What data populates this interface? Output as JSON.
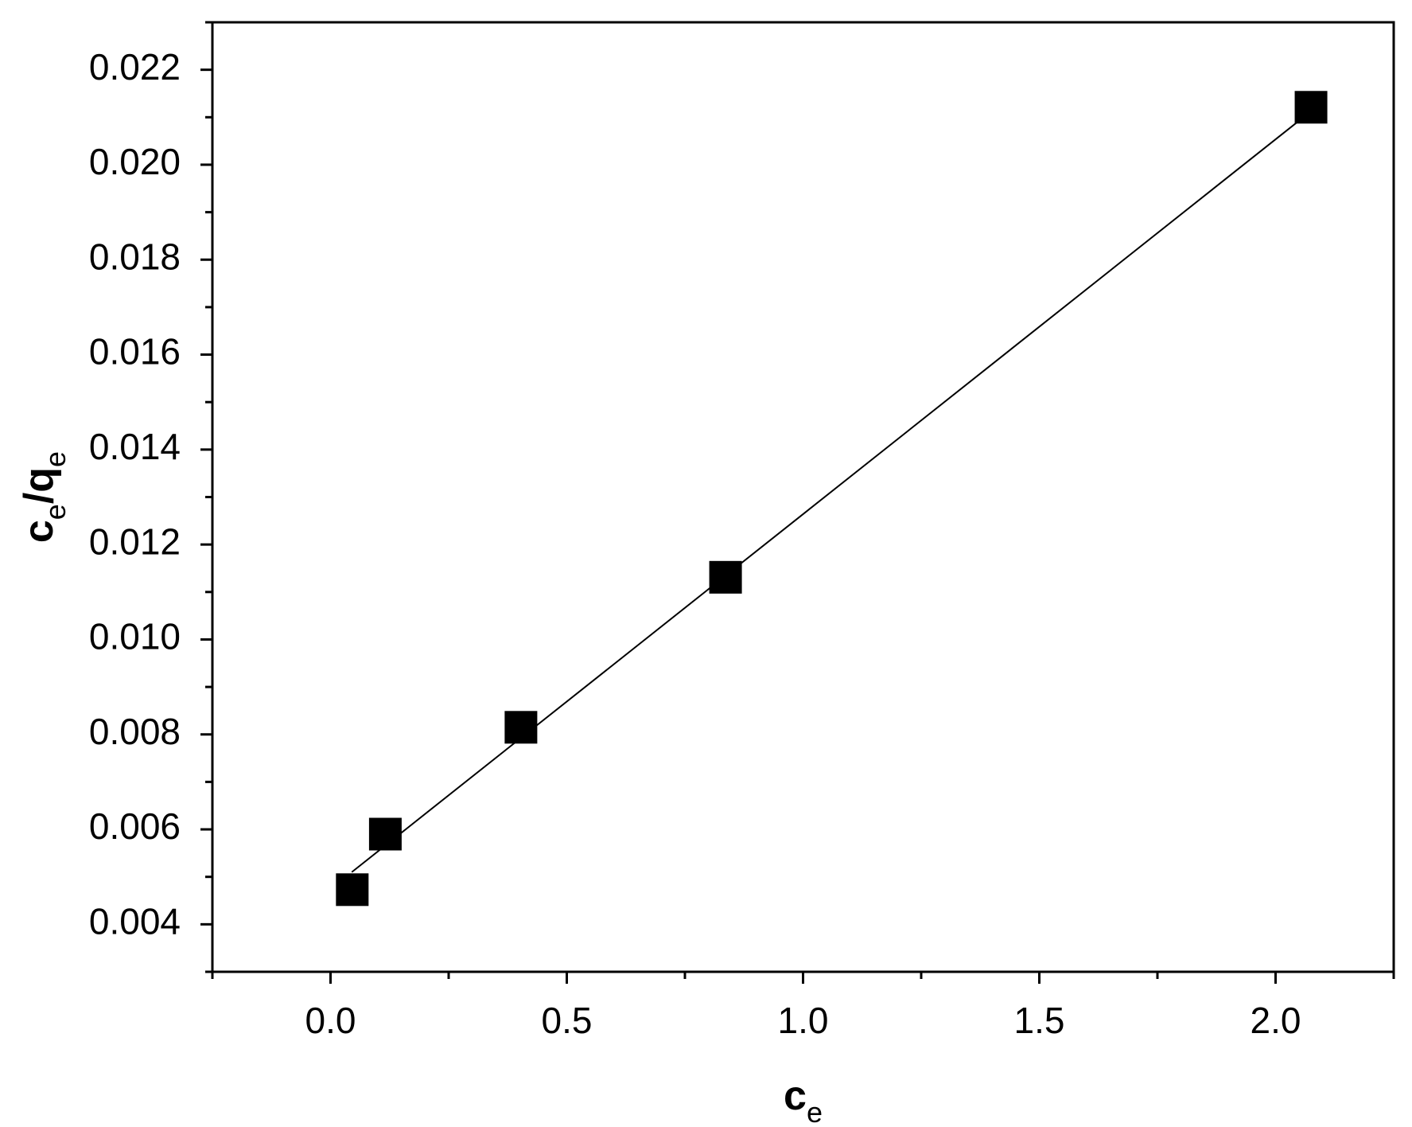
{
  "chart_data": {
    "type": "scatter",
    "xlabel": {
      "parts": [
        "c",
        "e"
      ],
      "sub": [
        false,
        true
      ]
    },
    "ylabel": {
      "parts": [
        "c",
        "e",
        "/q",
        "e"
      ],
      "sub": [
        false,
        true,
        false,
        true
      ]
    },
    "x": [
      0.046,
      0.116,
      0.403,
      0.836,
      2.075
    ],
    "values": [
      0.00473,
      0.0059,
      0.00815,
      0.01131,
      0.02121
    ],
    "color": "#000000",
    "fit": {
      "x": [
        0.045,
        2.064
      ],
      "values": [
        0.0051,
        0.02104
      ],
      "color": "#000000"
    },
    "xlim": [
      -0.25,
      2.25
    ],
    "xticks": [
      {
        "value": 0,
        "label": "0.0"
      },
      0.5,
      {
        "value": 1,
        "label": "1.0"
      },
      1.5,
      {
        "value": 2,
        "label": "2.0"
      }
    ],
    "xminorticks": [
      -0.25,
      0.25,
      0.75,
      1.25,
      1.75,
      2.25
    ],
    "ylim": [
      0.003,
      0.023
    ],
    "yticks": [
      {
        "value": 0.004,
        "label": "0.004"
      },
      {
        "value": 0.006,
        "label": "0.006"
      },
      {
        "value": 0.008,
        "label": "0.008"
      },
      {
        "value": 0.01,
        "label": "0.010"
      },
      {
        "value": 0.012,
        "label": "0.012"
      },
      {
        "value": 0.014,
        "label": "0.014"
      },
      {
        "value": 0.016,
        "label": "0.016"
      },
      {
        "value": 0.018,
        "label": "0.018"
      },
      {
        "value": 0.02,
        "label": "0.020"
      },
      {
        "value": 0.022,
        "label": "0.022"
      }
    ],
    "yminorticks": [
      0.003,
      0.005,
      0.007,
      0.009,
      0.011,
      0.013,
      0.015,
      0.017,
      0.019,
      0.021,
      0.023
    ],
    "grid": false
  }
}
